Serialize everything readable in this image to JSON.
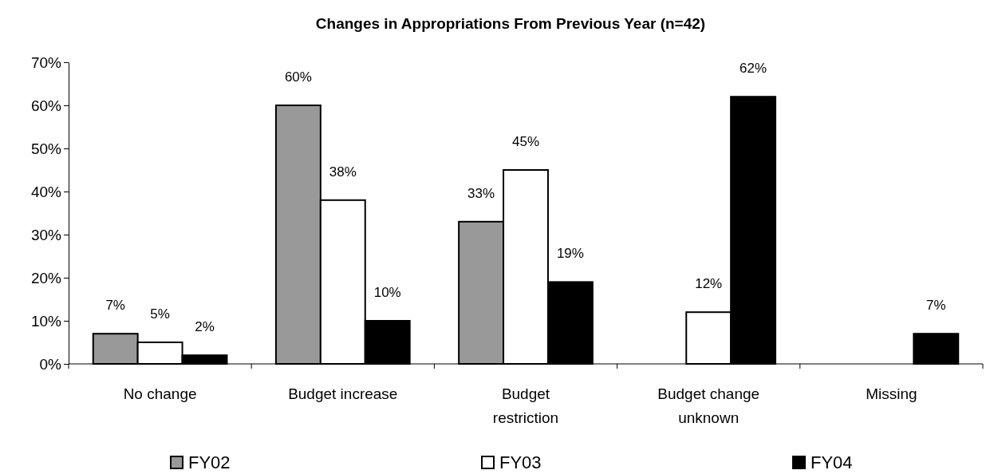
{
  "chart_data": {
    "type": "bar",
    "title": "Changes in Appropriations From Previous Year (n=42)",
    "categories": [
      "No change",
      "Budget increase",
      "Budget restriction",
      "Budget change unknown",
      "Missing"
    ],
    "series": [
      {
        "name": "FY02",
        "color": "#999999",
        "values": [
          7,
          60,
          33,
          null,
          null
        ],
        "value_labels": [
          "7%",
          "60%",
          "33%",
          null,
          null
        ]
      },
      {
        "name": "FY03",
        "color": "#ffffff",
        "values": [
          5,
          38,
          45,
          12,
          null
        ],
        "value_labels": [
          "5%",
          "38%",
          "45%",
          "12%",
          null
        ]
      },
      {
        "name": "FY04",
        "color": "#000000",
        "values": [
          2,
          10,
          19,
          62,
          7
        ],
        "value_labels": [
          "2%",
          "10%",
          "19%",
          "62%",
          "7%"
        ]
      }
    ],
    "ylim": [
      0,
      70
    ],
    "yticks": [
      {
        "value": 0,
        "label": "0%"
      },
      {
        "value": 10,
        "label": "10%"
      },
      {
        "value": 20,
        "label": "20%"
      },
      {
        "value": 30,
        "label": "30%"
      },
      {
        "value": 40,
        "label": "40%"
      },
      {
        "value": 50,
        "label": "50%"
      },
      {
        "value": 60,
        "label": "60%"
      },
      {
        "value": 70,
        "label": "70%"
      }
    ],
    "grid": false,
    "legend": "bottom"
  }
}
